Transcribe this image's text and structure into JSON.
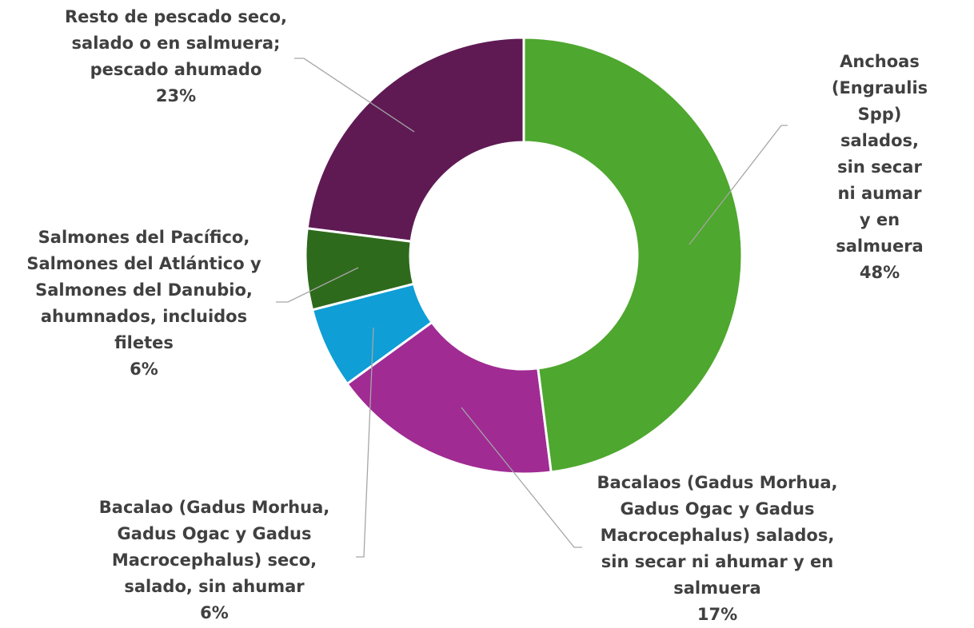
{
  "chart_data": {
    "type": "donut",
    "categories": [
      "Anchoas\n(Engraulis Spp)\nsalados, sin secar\nni aumar y en\nsalmuera",
      "Bacalaos (Gadus Morhua,\nGadus Ogac y Gadus\nMacrocephalus) salados,\nsin secar ni ahumar y en\nsalmuera",
      "Bacalao (Gadus Morhua,\nGadus Ogac y Gadus\nMacrocephalus) seco,\nsalado, sin ahumar",
      "Salmones del Pacífico,\nSalmones del Atlántico y\nSalmones del Danubio,\nahumnados, incluidos\nfiletes",
      "Resto de pescado seco,\nsalado o en salmuera;\npescado ahumado"
    ],
    "values": [
      48,
      17,
      6,
      6,
      23
    ],
    "value_labels": [
      "48%",
      "17%",
      "6%",
      "6%",
      "23%"
    ],
    "colors": [
      "#4ea72e",
      "#a02b93",
      "#0f9ed5",
      "#2e6a1c",
      "#5f1a54"
    ]
  }
}
